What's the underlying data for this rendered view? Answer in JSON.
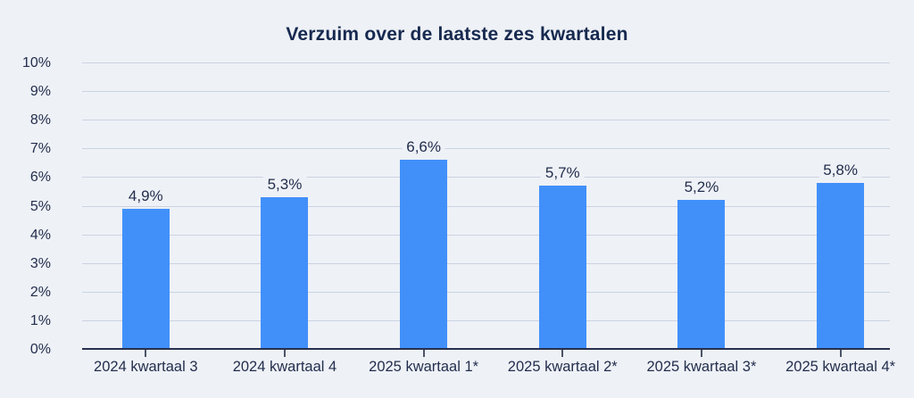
{
  "chart_data": {
    "type": "bar",
    "title": "Verzuim over de laatste zes kwartalen",
    "categories": [
      "2024 kwartaal 3",
      "2024 kwartaal 4",
      "2025 kwartaal 1*",
      "2025 kwartaal 2*",
      "2025 kwartaal 3*",
      "2025 kwartaal 4*"
    ],
    "values": [
      4.9,
      5.3,
      6.6,
      5.7,
      5.2,
      5.8
    ],
    "value_labels": [
      "4,9%",
      "5,3%",
      "6,6%",
      "5,7%",
      "5,2%",
      "5,8%"
    ],
    "y_ticks": [
      "0%",
      "1%",
      "2%",
      "3%",
      "4%",
      "5%",
      "6%",
      "7%",
      "8%",
      "9%",
      "10%"
    ],
    "ylim": [
      0,
      10
    ],
    "xlabel": "",
    "ylabel": "",
    "grid": true,
    "legend_position": "none",
    "colors": {
      "bar": "#4190fa",
      "background": "#eef1f6",
      "gridline": "#cbd3e2",
      "axis_line": "#27304d",
      "text": "#232e4d",
      "title": "#16294f"
    }
  }
}
